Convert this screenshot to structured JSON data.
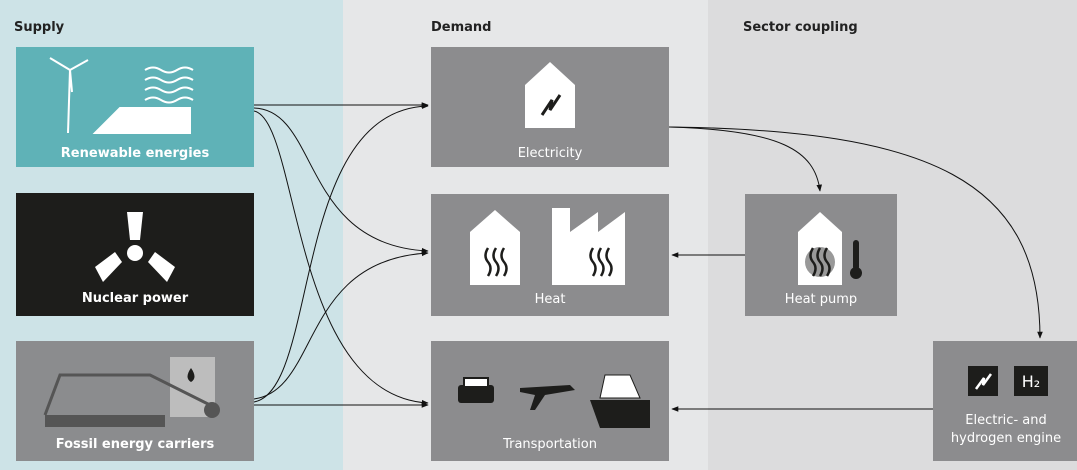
{
  "headers": {
    "supply": "Supply",
    "demand": "Demand",
    "sector_coupling": "Sector coupling"
  },
  "nodes": [
    {
      "label": "Renewable energies"
    },
    {
      "label": "Nuclear power"
    },
    {
      "label": "Fossil energy carriers"
    },
    {
      "label": "Electricity"
    },
    {
      "label": "Heat"
    },
    {
      "label": "Transportation"
    },
    {
      "label": "Heat pump"
    },
    {
      "label": [
        "Electric- and",
        "hydrogen engine"
      ],
      "icon_text": "H₂"
    }
  ]
}
